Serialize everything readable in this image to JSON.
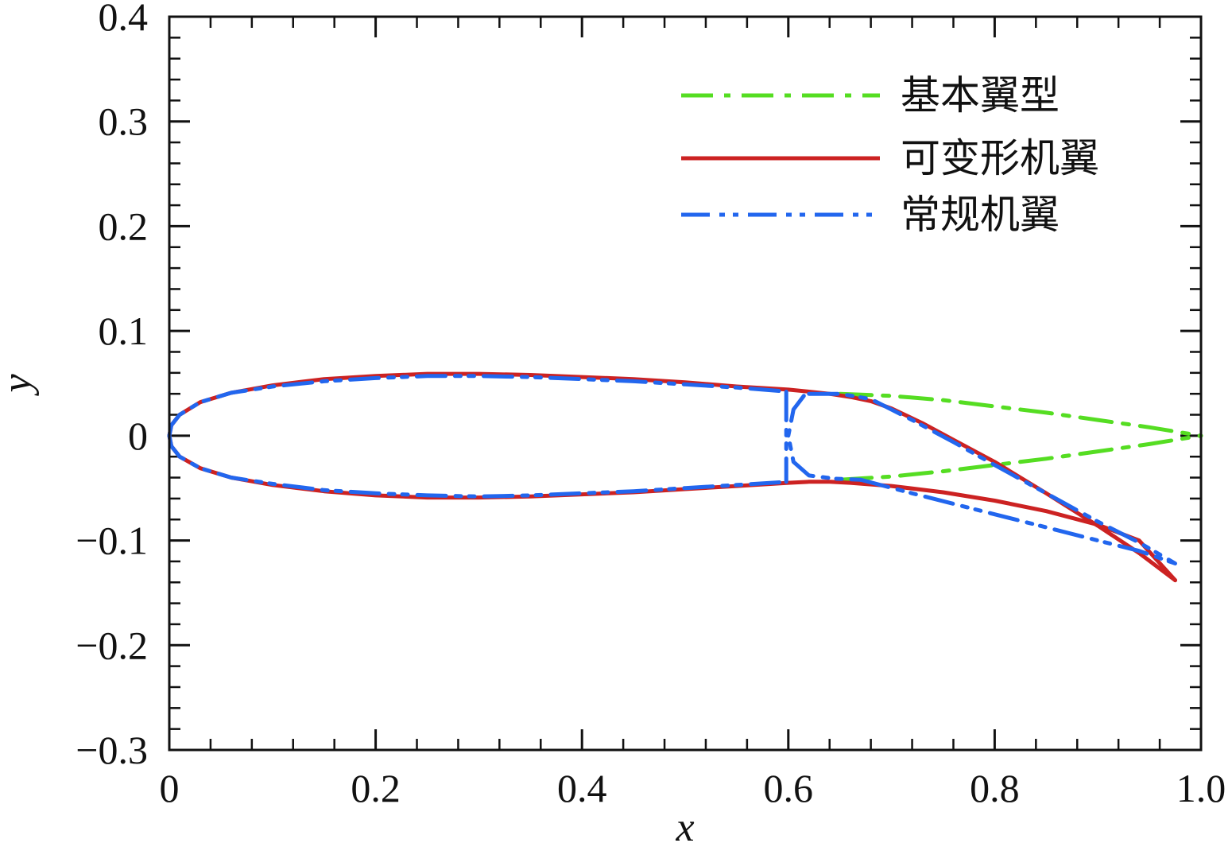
{
  "chart_data": {
    "type": "line",
    "title": "",
    "xlabel": "x",
    "ylabel": "y",
    "xlim": [
      0,
      1.0
    ],
    "ylim": [
      -0.3,
      0.4
    ],
    "x_ticks": [
      0,
      0.2,
      0.4,
      0.6,
      0.8,
      1.0
    ],
    "x_tick_labels": [
      "0",
      "0.2",
      "0.4",
      "0.6",
      "0.8",
      "1.0"
    ],
    "y_ticks": [
      -0.3,
      -0.2,
      -0.1,
      0,
      0.1,
      0.2,
      0.3,
      0.4
    ],
    "y_tick_labels": [
      "−0.3",
      "−0.2",
      "−0.1",
      "0",
      "0.1",
      "0.2",
      "0.3",
      "0.4"
    ],
    "x_minor_step": 0.04,
    "y_minor_step": 0.02,
    "grid": false,
    "legend_position": "top-right",
    "series": [
      {
        "name": "基本翼型",
        "color": "#55dd22",
        "dash": "dashdot",
        "segments": [
          [
            [
              0.65,
              0.04
            ],
            [
              0.7,
              0.038
            ],
            [
              0.75,
              0.034
            ],
            [
              0.8,
              0.028
            ],
            [
              0.85,
              0.022
            ],
            [
              0.9,
              0.015
            ],
            [
              0.95,
              0.008
            ],
            [
              1.0,
              0.0
            ]
          ],
          [
            [
              0.65,
              -0.042
            ],
            [
              0.7,
              -0.039
            ],
            [
              0.75,
              -0.034
            ],
            [
              0.8,
              -0.028
            ],
            [
              0.85,
              -0.022
            ],
            [
              0.9,
              -0.015
            ],
            [
              0.95,
              -0.008
            ],
            [
              1.0,
              0.0
            ]
          ]
        ]
      },
      {
        "name": "可变形机翼",
        "color": "#cc2222",
        "dash": "solid",
        "segments": [
          [
            [
              0.0,
              0.0
            ],
            [
              0.002,
              0.01
            ],
            [
              0.01,
              0.02
            ],
            [
              0.03,
              0.032
            ],
            [
              0.06,
              0.041
            ],
            [
              0.1,
              0.048
            ],
            [
              0.15,
              0.054
            ],
            [
              0.2,
              0.057
            ],
            [
              0.25,
              0.059
            ],
            [
              0.3,
              0.059
            ],
            [
              0.35,
              0.058
            ],
            [
              0.4,
              0.056
            ],
            [
              0.45,
              0.054
            ],
            [
              0.5,
              0.051
            ],
            [
              0.55,
              0.047
            ],
            [
              0.6,
              0.044
            ],
            [
              0.62,
              0.042
            ],
            [
              0.64,
              0.04
            ],
            [
              0.66,
              0.037
            ],
            [
              0.68,
              0.033
            ],
            [
              0.7,
              0.026
            ],
            [
              0.73,
              0.012
            ],
            [
              0.76,
              -0.004
            ],
            [
              0.8,
              -0.025
            ],
            [
              0.85,
              -0.055
            ],
            [
              0.9,
              -0.086
            ],
            [
              0.94,
              -0.112
            ],
            [
              0.975,
              -0.138
            ]
          ],
          [
            [
              0.0,
              0.0
            ],
            [
              0.002,
              -0.01
            ],
            [
              0.01,
              -0.02
            ],
            [
              0.03,
              -0.031
            ],
            [
              0.06,
              -0.04
            ],
            [
              0.1,
              -0.047
            ],
            [
              0.15,
              -0.053
            ],
            [
              0.2,
              -0.057
            ],
            [
              0.25,
              -0.059
            ],
            [
              0.3,
              -0.059
            ],
            [
              0.35,
              -0.058
            ],
            [
              0.4,
              -0.056
            ],
            [
              0.45,
              -0.054
            ],
            [
              0.5,
              -0.051
            ],
            [
              0.55,
              -0.048
            ],
            [
              0.6,
              -0.045
            ],
            [
              0.62,
              -0.044
            ],
            [
              0.64,
              -0.044
            ],
            [
              0.66,
              -0.045
            ],
            [
              0.7,
              -0.048
            ],
            [
              0.75,
              -0.054
            ],
            [
              0.8,
              -0.062
            ],
            [
              0.85,
              -0.072
            ],
            [
              0.9,
              -0.085
            ],
            [
              0.94,
              -0.1
            ],
            [
              0.975,
              -0.138
            ]
          ]
        ]
      },
      {
        "name": "常规机翼",
        "color": "#2266ee",
        "dash": "dashdotdot",
        "segments": [
          [
            [
              0.0,
              0.0
            ],
            [
              0.002,
              0.01
            ],
            [
              0.01,
              0.02
            ],
            [
              0.03,
              0.032
            ],
            [
              0.06,
              0.041
            ],
            [
              0.1,
              0.047
            ],
            [
              0.15,
              0.052
            ],
            [
              0.2,
              0.055
            ],
            [
              0.25,
              0.057
            ],
            [
              0.3,
              0.057
            ],
            [
              0.35,
              0.056
            ],
            [
              0.4,
              0.054
            ],
            [
              0.45,
              0.052
            ],
            [
              0.5,
              0.049
            ],
            [
              0.55,
              0.046
            ],
            [
              0.6,
              0.042
            ]
          ],
          [
            [
              0.0,
              0.0
            ],
            [
              0.002,
              -0.01
            ],
            [
              0.01,
              -0.02
            ],
            [
              0.03,
              -0.031
            ],
            [
              0.06,
              -0.04
            ],
            [
              0.1,
              -0.046
            ],
            [
              0.15,
              -0.052
            ],
            [
              0.2,
              -0.055
            ],
            [
              0.25,
              -0.057
            ],
            [
              0.3,
              -0.058
            ],
            [
              0.35,
              -0.057
            ],
            [
              0.4,
              -0.055
            ],
            [
              0.45,
              -0.053
            ],
            [
              0.5,
              -0.05
            ],
            [
              0.55,
              -0.047
            ],
            [
              0.6,
              -0.044
            ]
          ],
          [
            [
              0.598,
              0.042
            ],
            [
              0.598,
              -0.044
            ]
          ],
          [
            [
              0.615,
              0.038
            ],
            [
              0.605,
              0.025
            ],
            [
              0.6,
              0.0
            ],
            [
              0.605,
              -0.025
            ],
            [
              0.62,
              -0.038
            ],
            [
              0.645,
              -0.041
            ],
            [
              0.67,
              -0.042
            ]
          ],
          [
            [
              0.62,
              0.04
            ],
            [
              0.65,
              0.04
            ],
            [
              0.68,
              0.035
            ],
            [
              0.72,
              0.015
            ],
            [
              0.76,
              -0.006
            ],
            [
              0.8,
              -0.028
            ],
            [
              0.85,
              -0.055
            ],
            [
              0.9,
              -0.082
            ],
            [
              0.94,
              -0.102
            ],
            [
              0.975,
              -0.122
            ]
          ],
          [
            [
              0.67,
              -0.042
            ],
            [
              0.72,
              -0.055
            ],
            [
              0.78,
              -0.07
            ],
            [
              0.84,
              -0.085
            ],
            [
              0.9,
              -0.1
            ],
            [
              0.94,
              -0.11
            ],
            [
              0.975,
              -0.122
            ]
          ]
        ]
      }
    ]
  }
}
